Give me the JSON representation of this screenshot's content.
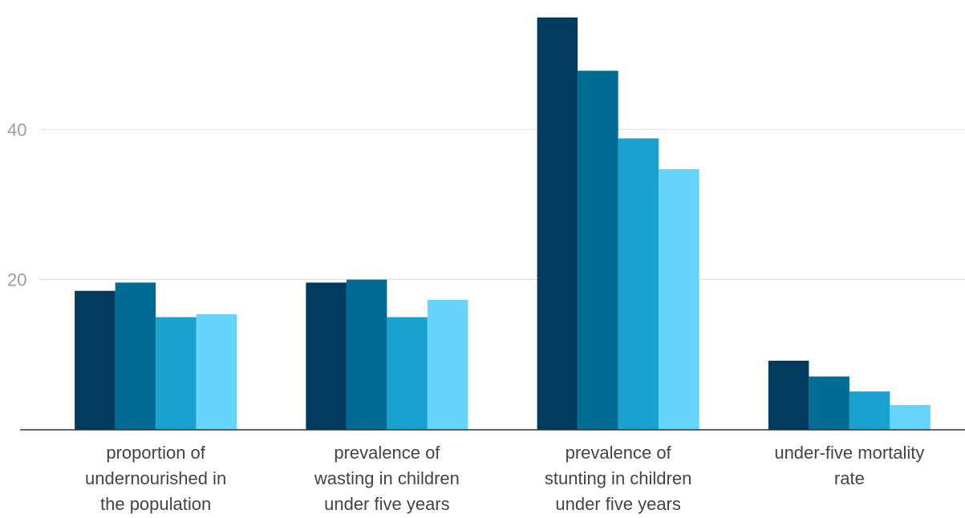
{
  "chart_data": {
    "type": "bar",
    "title": "",
    "xlabel": "",
    "ylabel": "",
    "categories": [
      [
        "proportion of",
        "undernourished in",
        "the population"
      ],
      [
        "prevalence of",
        "wasting in children",
        "under five years"
      ],
      [
        "prevalence of",
        "stunting in children",
        "under five years"
      ],
      [
        "under-five mortality",
        "rate"
      ]
    ],
    "series": [
      {
        "values": [
          18.5,
          19.6,
          54.9,
          9.2
        ],
        "color": "#003a5c"
      },
      {
        "values": [
          19.6,
          20.0,
          47.8,
          7.1
        ],
        "color": "#006b93"
      },
      {
        "values": [
          15.0,
          15.0,
          38.8,
          5.1
        ],
        "color": "#1ba1d0"
      },
      {
        "values": [
          15.4,
          17.3,
          34.7,
          3.3
        ],
        "color": "#66d4fc"
      }
    ],
    "yticks": [
      20,
      40
    ],
    "ylim": [
      0,
      55.3
    ],
    "grid": true,
    "legend": "none"
  }
}
